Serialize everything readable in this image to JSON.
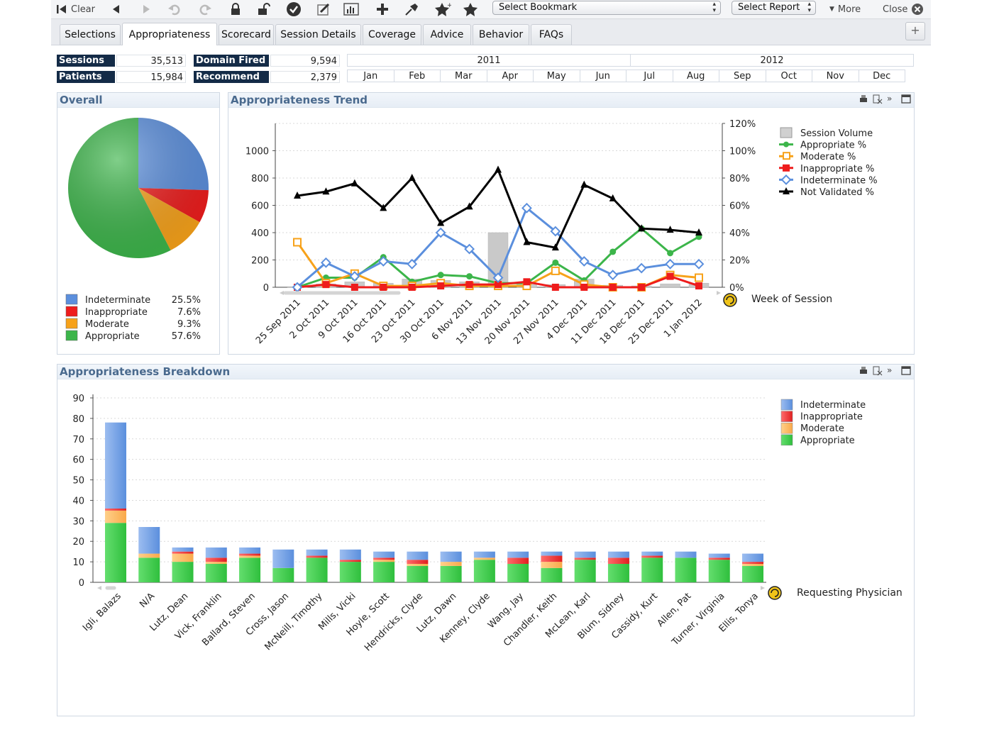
{
  "toolbar": {
    "clear_label": "Clear",
    "bookmark_select": "Select Bookmark",
    "report_select": "Select Report",
    "more_label": "More",
    "close_label": "Close"
  },
  "tabs": [
    "Selections",
    "Appropriateness",
    "Scorecard",
    "Session Details",
    "Coverage",
    "Advice",
    "Behavior",
    "FAQs"
  ],
  "active_tab": "Appropriateness",
  "stats": {
    "sessions_label": "Sessions",
    "sessions_value": "35,513",
    "patients_label": "Patients",
    "patients_value": "15,984",
    "domain_fired_label": "Domain Fired",
    "domain_fired_value": "9,594",
    "recommend_label": "Recommend",
    "recommend_value": "2,379"
  },
  "timeline": {
    "years": [
      "2011",
      "2012"
    ],
    "months": [
      "Jan",
      "Feb",
      "Mar",
      "Apr",
      "May",
      "Jun",
      "Jul",
      "Aug",
      "Sep",
      "Oct",
      "Nov",
      "Dec"
    ]
  },
  "panels": {
    "overall_title": "Overall",
    "trend_title": "Appropriateness Trend",
    "breakdown_title": "Appropriateness Breakdown"
  },
  "colors": {
    "indeterminate": "#5b8fdd",
    "inappropriate": "#ee1c1c",
    "moderate": "#f7a21a",
    "appropriate": "#3cb54a",
    "not_validated": "#000000",
    "session_volume": "#c8c8c8",
    "header_navy": "#142b47",
    "panel_title": "#4a6a8e"
  },
  "chart_data": [
    {
      "type": "pie",
      "title": "Overall",
      "categories": [
        "Indeterminate",
        "Inappropriate",
        "Moderate",
        "Appropriate"
      ],
      "values": [
        25.5,
        7.6,
        9.3,
        57.6
      ],
      "labels": [
        "25.5%",
        "7.6%",
        "9.3%",
        "57.6%"
      ],
      "legend": "bottom"
    },
    {
      "type": "line",
      "title": "Appropriateness Trend",
      "xlabel": "Week of Session",
      "x": [
        "25 Sep 2011",
        "2 Oct 2011",
        "9 Oct 2011",
        "16 Oct 2011",
        "23 Oct 2011",
        "30 Oct 2011",
        "6 Nov 2011",
        "13 Nov 2011",
        "20 Nov 2011",
        "27 Nov 2011",
        "4 Dec 2011",
        "11 Dec 2011",
        "18 Dec 2011",
        "25 Dec 2011",
        "1 Jan 2012"
      ],
      "y_left_ticks": [
        "0",
        "200",
        "400",
        "600",
        "800",
        "1000"
      ],
      "y_left_range": [
        0,
        1200
      ],
      "y_right_ticks": [
        "0%",
        "20%",
        "40%",
        "60%",
        "80%",
        "100%",
        "120%"
      ],
      "y_right_range": [
        0,
        120
      ],
      "legend": "right",
      "series": [
        {
          "name": "Session Volume",
          "axis": "left",
          "style": "bar",
          "values": [
            5,
            25,
            40,
            30,
            60,
            50,
            40,
            400,
            25,
            20,
            60,
            15,
            10,
            25,
            30
          ]
        },
        {
          "name": "Appropriate %",
          "axis": "right",
          "values": [
            0,
            7,
            7,
            22,
            4,
            9,
            8,
            3,
            3,
            18,
            5,
            26,
            43,
            25,
            37
          ]
        },
        {
          "name": "Moderate %",
          "axis": "right",
          "values": [
            33,
            3,
            10,
            1,
            1,
            3,
            1,
            1,
            1,
            12,
            2,
            0,
            0,
            9,
            7
          ]
        },
        {
          "name": "Inappropriate %",
          "axis": "right",
          "values": [
            0,
            2,
            0,
            0,
            0,
            1,
            2,
            2,
            4,
            0,
            0,
            0,
            0,
            8,
            1
          ]
        },
        {
          "name": "Indeterminate %",
          "axis": "right",
          "values": [
            0,
            18,
            8,
            19,
            17,
            40,
            28,
            7,
            58,
            41,
            19,
            9,
            14,
            17,
            17
          ]
        },
        {
          "name": "Not Validated %",
          "axis": "right",
          "values": [
            67,
            70,
            76,
            58,
            80,
            47,
            59,
            86,
            33,
            29,
            75,
            65,
            43,
            42,
            40
          ]
        }
      ]
    },
    {
      "type": "bar",
      "stacked": true,
      "title": "Appropriateness Breakdown",
      "xlabel": "Requesting Physician",
      "ylim": [
        0,
        90
      ],
      "y_ticks": [
        "0",
        "10",
        "20",
        "30",
        "40",
        "50",
        "60",
        "70",
        "80",
        "90"
      ],
      "legend": "right",
      "categories": [
        "Igli, Balazs",
        "N/A",
        "Lutz, Dean",
        "Vick, Franklin",
        "Ballard, Steven",
        "Cross, Jason",
        "McNeill, Timothy",
        "Mills, Vicki",
        "Hoyle, Scott",
        "Hendricks, Clyde",
        "Lutz, Dawn",
        "Kenney, Clyde",
        "Wang, Jay",
        "Chandler, Keith",
        "McLean, Karl",
        "Blum, Sidney",
        "Cassidy, Kurt",
        "Allen, Pat",
        "Turner, Virginia",
        "Ellis, Tonya"
      ],
      "series": [
        {
          "name": "Appropriate",
          "values": [
            29,
            12,
            10,
            9,
            12,
            7,
            12,
            10,
            10,
            8,
            8,
            11,
            9,
            7,
            11,
            9,
            12,
            12,
            11,
            8
          ]
        },
        {
          "name": "Moderate",
          "values": [
            6,
            2,
            4,
            1,
            1,
            0,
            0,
            0,
            1,
            1,
            2,
            1,
            0,
            3,
            0,
            0,
            0,
            0,
            0,
            1
          ]
        },
        {
          "name": "Inappropriate",
          "values": [
            1,
            0,
            1,
            2,
            1,
            0,
            1,
            1,
            1,
            2,
            0,
            0,
            3,
            3,
            1,
            3,
            1,
            0,
            1,
            1
          ]
        },
        {
          "name": "Indeterminate",
          "values": [
            42,
            13,
            2,
            5,
            3,
            9,
            3,
            5,
            3,
            4,
            5,
            3,
            3,
            2,
            3,
            3,
            2,
            3,
            2,
            4
          ]
        }
      ]
    }
  ]
}
